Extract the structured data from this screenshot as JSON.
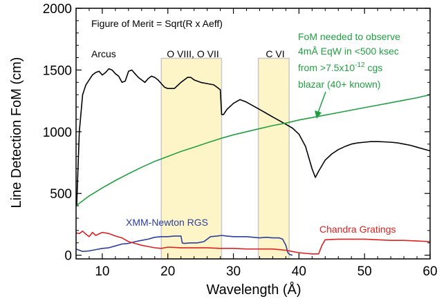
{
  "chart_data": {
    "type": "line",
    "title": "",
    "xlabel": "Wavelength (Å)",
    "ylabel": "Line Detection FoM (cm)",
    "xlim": [
      6,
      60
    ],
    "ylim": [
      -30,
      2000
    ],
    "x_ticks": [
      10,
      20,
      30,
      40,
      50,
      60
    ],
    "y_ticks": [
      0,
      500,
      1000,
      1500,
      2000
    ],
    "grid": false,
    "legend": "none",
    "bands": [
      {
        "x0": 19,
        "x1": 28.2,
        "label": "O VIII, O VII",
        "color": "#fdf5c8"
      },
      {
        "x0": 33.8,
        "x1": 38.5,
        "label": "C VI",
        "color": "#fdf5c8"
      }
    ],
    "annotations": {
      "formula": "Figure of Merit = Sqrt(R x Aeff)",
      "fom_note": [
        "FoM needed to observe",
        "4mÅ EqW in <500 ksec",
        "from >7.5x10",
        "-12",
        " cgs",
        "blazar (40+ known)"
      ],
      "arcus_label": "Arcus",
      "rgs_label": "XMM-Newton RGS",
      "chandra_label": "Chandra Gratings"
    },
    "series": [
      {
        "name": "Arcus",
        "color": "#000000",
        "x": [
          6.1,
          6.5,
          7.0,
          7.5,
          8.0,
          8.5,
          9.0,
          9.5,
          10.0,
          10.5,
          11.0,
          11.5,
          12.0,
          12.5,
          13.0,
          13.5,
          14.0,
          14.5,
          15.0,
          15.5,
          16.0,
          16.5,
          17.0,
          17.5,
          18.0,
          18.5,
          19.0,
          19.5,
          20.0,
          21.0,
          22.0,
          23.0,
          23.5,
          24.0,
          24.5,
          25.0,
          26.0,
          27.0,
          27.5,
          28.0,
          28.2,
          28.5,
          29.0,
          30.0,
          31.0,
          32.0,
          33.0,
          34.0,
          35.0,
          36.0,
          37.0,
          38.0,
          39.0,
          40.0,
          41.0,
          42.0,
          42.5,
          43.0,
          44.0,
          45.0,
          46.0,
          47.0,
          48.0,
          49.0,
          50.0,
          51.0,
          52.0,
          53.0,
          54.0,
          55.0,
          56.0,
          57.0,
          58.0,
          59.0,
          60.0
        ],
        "y": [
          400,
          1000,
          1300,
          1380,
          1420,
          1460,
          1480,
          1490,
          1460,
          1480,
          1510,
          1500,
          1470,
          1450,
          1400,
          1410,
          1490,
          1500,
          1470,
          1440,
          1420,
          1400,
          1430,
          1450,
          1440,
          1420,
          1390,
          1360,
          1350,
          1350,
          1400,
          1440,
          1440,
          1420,
          1410,
          1400,
          1390,
          1380,
          1360,
          1340,
          1140,
          1140,
          1180,
          1230,
          1260,
          1240,
          1210,
          1180,
          1150,
          1120,
          1090,
          1060,
          1030,
          980,
          880,
          700,
          630,
          680,
          770,
          820,
          855,
          880,
          900,
          910,
          915,
          920,
          920,
          918,
          915,
          910,
          900,
          890,
          875,
          860,
          845
        ]
      },
      {
        "name": "FoM needed",
        "color": "#1fa040",
        "x": [
          6,
          8,
          10,
          12,
          14,
          16,
          18,
          20,
          22,
          24,
          26,
          28,
          30,
          32,
          34,
          36,
          38,
          40,
          42,
          44,
          46,
          48,
          50,
          52,
          54,
          56,
          58,
          60
        ],
        "y": [
          400,
          480,
          545,
          605,
          660,
          712,
          760,
          800,
          840,
          875,
          910,
          945,
          975,
          1000,
          1025,
          1050,
          1070,
          1095,
          1115,
          1135,
          1155,
          1175,
          1195,
          1215,
          1235,
          1255,
          1275,
          1300
        ]
      },
      {
        "name": "XMM-Newton RGS",
        "color": "#2a3e9c",
        "x": [
          6,
          7,
          8,
          9,
          10,
          11,
          12,
          13,
          14,
          15,
          16,
          17,
          18,
          19,
          20,
          21,
          22,
          22.2,
          22.5,
          23.5,
          24.5,
          25.5,
          26.5,
          27.5,
          28.2,
          29,
          30,
          31,
          32,
          33,
          34,
          35,
          36,
          37,
          37.5,
          38,
          38.3,
          38.6,
          39
        ],
        "y": [
          50,
          30,
          35,
          45,
          55,
          60,
          75,
          90,
          95,
          110,
          120,
          130,
          145,
          150,
          150,
          155,
          155,
          100,
          95,
          100,
          100,
          110,
          150,
          155,
          160,
          155,
          150,
          150,
          150,
          145,
          140,
          145,
          140,
          140,
          130,
          80,
          20,
          5,
          0
        ]
      },
      {
        "name": "Chandra Gratings",
        "color": "#e02020",
        "x": [
          6,
          6.5,
          7,
          7.5,
          8,
          8.5,
          9,
          10,
          11,
          12,
          13,
          14,
          15,
          16,
          17,
          18,
          19,
          20,
          22,
          24,
          26,
          28,
          30,
          32,
          34,
          36,
          38,
          39,
          40,
          41,
          42,
          43,
          43.5,
          44,
          46,
          48,
          50,
          52,
          54,
          56,
          58,
          60
        ],
        "y": [
          180,
          175,
          195,
          170,
          150,
          185,
          160,
          185,
          175,
          155,
          140,
          110,
          95,
          80,
          70,
          60,
          55,
          65,
          60,
          60,
          60,
          55,
          55,
          50,
          50,
          50,
          40,
          30,
          20,
          15,
          10,
          10,
          80,
          125,
          130,
          130,
          130,
          125,
          120,
          120,
          115,
          110
        ]
      }
    ]
  }
}
